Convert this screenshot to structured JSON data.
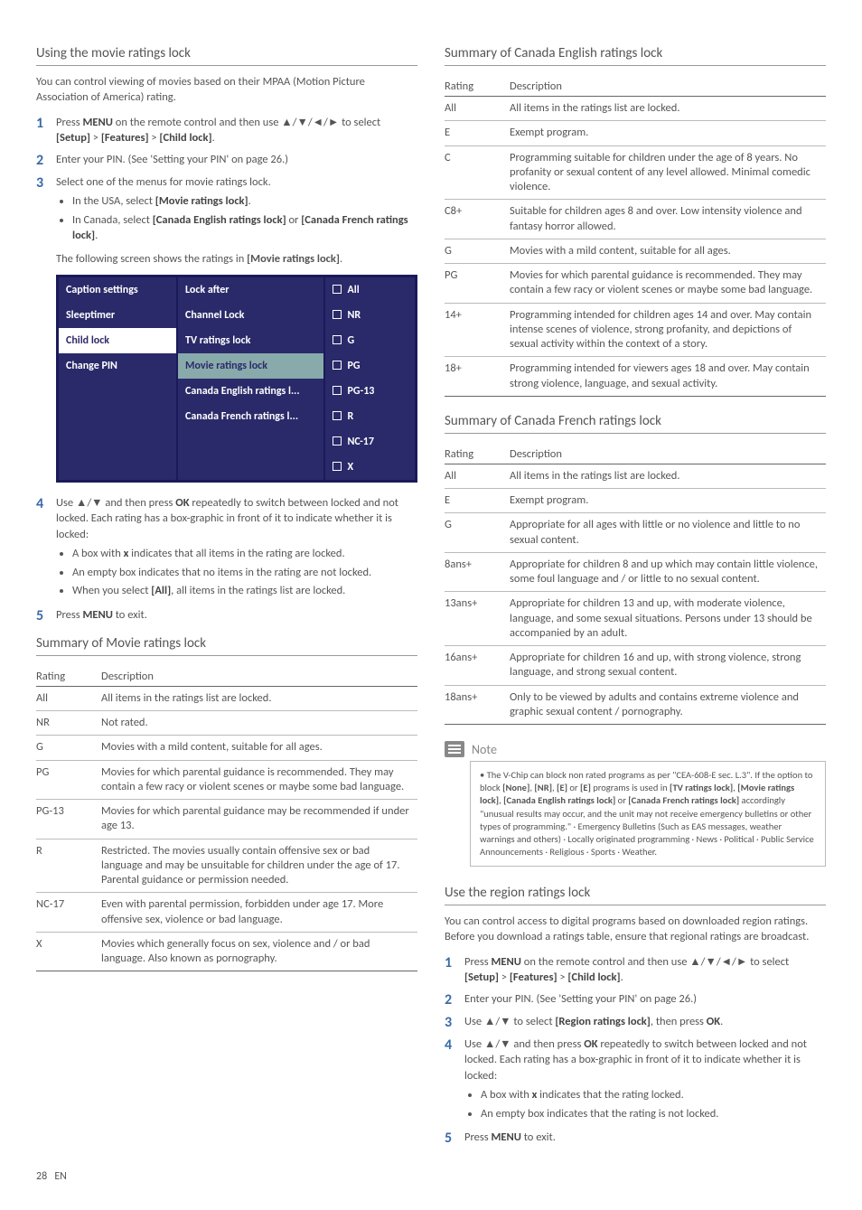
{
  "left": {
    "sec1_title": "Using the movie ratings lock",
    "intro": "You can control viewing of movies based on their MPAA (Motion Picture Association of America) rating.",
    "step1_a": "Press ",
    "step1_menu": "MENU",
    "step1_b": " on the remote control and then use ▲/▼/◄/► to select ",
    "step1_setup": "[Setup]",
    "step1_gt1": " > ",
    "step1_feat": "[Features]",
    "step1_gt2": " > ",
    "step1_child": "[Child lock]",
    "step1_dot": ".",
    "step2": "Enter your PIN. (See 'Setting your PIN' on page 26.)",
    "step3": "Select one of the menus for movie ratings lock.",
    "step3_a_a": "In the USA, select ",
    "step3_a_b": "[Movie ratings lock]",
    "step3_a_c": ".",
    "step3_b_a": "In Canada, select ",
    "step3_b_b": "[Canada English ratings lock]",
    "step3_b_c": " or ",
    "step3_b_d": "[Canada French ratings lock]",
    "step3_b_e": ".",
    "step3_note_a": "The following screen shows the ratings in ",
    "step3_note_b": "[Movie ratings lock]",
    "step3_note_c": ".",
    "ui": {
      "c1": [
        "Caption settings",
        "Sleeptimer",
        "Child lock",
        "Change PIN"
      ],
      "c2": [
        "Lock after",
        "Channel Lock",
        "TV ratings lock",
        "Movie ratings lock",
        "Canada English ratings l...",
        "Canada French ratings l..."
      ],
      "c3": [
        "All",
        "NR",
        "G",
        "PG",
        "PG-13",
        "R",
        "NC-17",
        "X"
      ]
    },
    "step4_a": "Use ▲/▼ and then press ",
    "step4_ok": "OK",
    "step4_b": " repeatedly to switch between locked and not locked. Each rating has a box-graphic in front of it to indicate whether it is locked:",
    "step4_s1a": "A box with ",
    "step4_s1x": "x",
    "step4_s1b": " indicates that all items in the rating are locked.",
    "step4_s2": "An empty box indicates that no items in the rating are not locked.",
    "step4_s3a": "When you select ",
    "step4_s3b": "[All]",
    "step4_s3c": ", all items in the ratings list are locked.",
    "step5_a": "Press ",
    "step5_menu": "MENU",
    "step5_b": " to exit.",
    "sec2_title": "Summary of Movie ratings lock",
    "movie_table": {
      "h1": "Rating",
      "h2": "Description",
      "rows": [
        [
          "All",
          "All items in the ratings list are locked."
        ],
        [
          "NR",
          "Not rated."
        ],
        [
          "G",
          "Movies with a mild content, suitable for all ages."
        ],
        [
          "PG",
          "Movies for which parental guidance is recommended. They may contain a few racy or violent scenes or maybe some bad language."
        ],
        [
          "PG-13",
          "Movies for which parental guidance may be recommended if under age 13."
        ],
        [
          "R",
          "Restricted. The movies usually contain offensive sex or bad language and may be unsuitable for children under the age of 17. Parental guidance or permission needed."
        ],
        [
          "NC-17",
          "Even with parental permission, forbidden under age 17. More offensive sex, violence or bad language."
        ],
        [
          "X",
          "Movies which generally focus on sex, violence and / or bad language. Also known as pornography."
        ]
      ]
    }
  },
  "right": {
    "sec1_title": "Summary of Canada English ratings lock",
    "en_table": {
      "h1": "Rating",
      "h2": "Description",
      "rows": [
        [
          "All",
          "All items in the ratings list are locked."
        ],
        [
          "E",
          "Exempt program."
        ],
        [
          "C",
          "Programming suitable for children under the age of 8 years. No profanity or sexual content of any level allowed. Minimal comedic violence."
        ],
        [
          "C8+",
          "Suitable for children ages 8 and over. Low intensity violence and fantasy horror allowed."
        ],
        [
          "G",
          "Movies with a mild content, suitable for all ages."
        ],
        [
          "PG",
          "Movies for which parental guidance is recommended. They may contain a few racy or violent scenes or maybe some bad language."
        ],
        [
          "14+",
          "Programming intended for children ages 14 and over. May contain intense scenes of violence, strong profanity, and depictions of sexual activity within the context of a story."
        ],
        [
          "18+",
          "Programming intended for viewers ages 18 and over. May contain strong violence, language, and sexual activity."
        ]
      ]
    },
    "sec2_title": "Summary of Canada French ratings lock",
    "fr_table": {
      "h1": "Rating",
      "h2": "Description",
      "rows": [
        [
          "All",
          "All items in the ratings list are locked."
        ],
        [
          "E",
          "Exempt program."
        ],
        [
          "G",
          "Appropriate for all ages with little or no violence and little to no sexual content."
        ],
        [
          "8ans+",
          "Appropriate for children 8 and up which may contain little violence, some foul language and / or little to no sexual content."
        ],
        [
          "13ans+",
          "Appropriate for children 13 and up, with moderate violence, language, and some sexual situations. Persons under 13 should be accompanied by an adult."
        ],
        [
          "16ans+",
          "Appropriate for children 16 and up, with strong violence, strong language, and strong sexual content."
        ],
        [
          "18ans+",
          "Only to be viewed by adults and contains extreme violence and graphic sexual content / pornography."
        ]
      ]
    },
    "note_label": "Note",
    "note_a": "The V-Chip can block non rated programs as per \"CEA-608-E sec. L.3\". If the option to block ",
    "note_b": "[None]",
    "note_c": ", ",
    "note_d": "[NR]",
    "note_e": ", ",
    "note_f": "[E]",
    "note_g": " or ",
    "note_h": "[E]",
    "note_i": " programs is used in ",
    "note_j": "[TV ratings lock]",
    "note_k": ", ",
    "note_l": "[Movie ratings lock]",
    "note_m": ", ",
    "note_n": "[Canada English ratings lock]",
    "note_o": " or ",
    "note_p": "[Canada French ratings lock]",
    "note_q": " accordingly \"unusual results may occur, and the unit may not receive emergency bulletins or other types of programming.\" · Emergency Bulletins (Such as EAS messages, weather warnings and others) · Locally originated programming · News · Political · Public Service Announcements · Religious · Sports · Weather.",
    "sec3_title": "Use the region ratings lock",
    "sec3_intro": "You can control access to digital programs based on downloaded region ratings. Before you download a ratings table, ensure that regional ratings are broadcast.",
    "r_step1_a": "Press ",
    "r_step1_menu": "MENU",
    "r_step1_b": " on the remote control and then use ▲/▼/◄/► to select ",
    "r_step1_setup": "[Setup]",
    "r_step1_gt1": " > ",
    "r_step1_feat": "[Features]",
    "r_step1_gt2": " > ",
    "r_step1_child": "[Child lock]",
    "r_step1_dot": ".",
    "r_step2": "Enter your PIN. (See 'Setting your PIN' on page 26.)",
    "r_step3_a": "Use ▲/▼ to select ",
    "r_step3_b": "[Region ratings lock]",
    "r_step3_c": ", then press ",
    "r_step3_ok": "OK",
    "r_step3_d": ".",
    "r_step4_a": "Use ▲/▼ and then press ",
    "r_step4_ok": "OK",
    "r_step4_b": " repeatedly to switch between locked and not locked. Each rating has a box-graphic in front of it to indicate whether it is locked:",
    "r_step4_s1a": "A box with ",
    "r_step4_s1x": "x",
    "r_step4_s1b": " indicates that the rating locked.",
    "r_step4_s2": "An empty box indicates that the rating is not locked.",
    "r_step5_a": "Press ",
    "r_step5_menu": "MENU",
    "r_step5_b": " to exit."
  },
  "footer_page": "28",
  "footer_lang": "EN"
}
